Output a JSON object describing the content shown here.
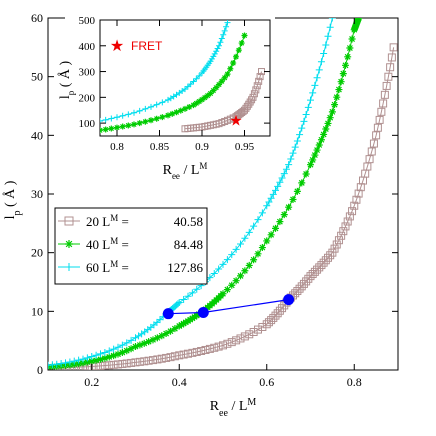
{
  "chart_data": [
    {
      "id": "main",
      "type": "line",
      "xlabel": "R_ee / L^M",
      "ylabel": "l_p (Å)",
      "xlim": [
        0.1,
        0.9
      ],
      "ylim": [
        0,
        60
      ],
      "xticks": [
        0.2,
        0.4,
        0.6,
        0.8
      ],
      "yticks": [
        0,
        10,
        20,
        30,
        40,
        50,
        60
      ],
      "legend_position": "left-middle",
      "series": [
        {
          "name": "20  L^M = 40.58",
          "legend_n": "20",
          "legend_value": "40.58",
          "marker": "square",
          "color": "#b09090",
          "points": [
            [
              0.1,
              0.3
            ],
            [
              0.2,
              0.6
            ],
            [
              0.3,
              1.3
            ],
            [
              0.4,
              2.5
            ],
            [
              0.5,
              4.2
            ],
            [
              0.6,
              7.8
            ],
            [
              0.65,
              12.0
            ],
            [
              0.7,
              16.0
            ],
            [
              0.75,
              20.0
            ],
            [
              0.8,
              28.0
            ],
            [
              0.85,
              40.0
            ],
            [
              0.89,
              55.0
            ]
          ]
        },
        {
          "name": "40  L^M = 84.48",
          "legend_n": "40",
          "legend_value": "84.48",
          "marker": "asterisk",
          "color": "#00cc00",
          "points": [
            [
              0.1,
              0.5
            ],
            [
              0.2,
              1.5
            ],
            [
              0.3,
              4.0
            ],
            [
              0.4,
              7.5
            ],
            [
              0.45,
              9.8
            ],
            [
              0.5,
              13.0
            ],
            [
              0.6,
              22.0
            ],
            [
              0.7,
              35.0
            ],
            [
              0.75,
              44.0
            ],
            [
              0.8,
              58.0
            ],
            [
              0.81,
              60.0
            ]
          ]
        },
        {
          "name": "60  L^M = 127.86",
          "legend_n": "60",
          "legend_value": "127.86",
          "marker": "plus",
          "color": "#00ddee",
          "points": [
            [
              0.1,
              0.8
            ],
            [
              0.2,
              2.3
            ],
            [
              0.3,
              5.5
            ],
            [
              0.37,
              9.6
            ],
            [
              0.4,
              11.5
            ],
            [
              0.5,
              18.0
            ],
            [
              0.6,
              28.0
            ],
            [
              0.65,
              35.0
            ],
            [
              0.7,
              46.0
            ],
            [
              0.75,
              60.0
            ]
          ]
        }
      ],
      "connector": {
        "color": "#0000ff",
        "points": [
          [
            0.375,
            9.6
          ],
          [
            0.455,
            9.8
          ],
          [
            0.65,
            12.0
          ]
        ]
      },
      "legend": {
        "l_label": "L",
        "l_superscript": "M",
        "equals": "="
      }
    },
    {
      "id": "inset",
      "type": "line",
      "xlabel": "R_ee / L^M",
      "ylabel": "l_p (Å)",
      "xlim": [
        0.78,
        0.98
      ],
      "ylim": [
        50,
        500
      ],
      "xticks": [
        0.8,
        0.85,
        0.9,
        0.95
      ],
      "xtick_labels": [
        "0.8",
        "0.85",
        "0.9",
        "0.95"
      ],
      "yticks": [
        100,
        200,
        300,
        400,
        500
      ],
      "annotation": {
        "label": "FRET",
        "marker": "star",
        "color": "#ee0000",
        "x": 0.94,
        "y": 110
      },
      "series": [
        {
          "name": "20",
          "marker": "square",
          "color": "#b09090",
          "points": [
            [
              0.88,
              78
            ],
            [
              0.9,
              85
            ],
            [
              0.92,
              98
            ],
            [
              0.94,
              125
            ],
            [
              0.95,
              150
            ],
            [
              0.96,
              200
            ],
            [
              0.97,
              300
            ]
          ]
        },
        {
          "name": "40",
          "marker": "asterisk",
          "color": "#00cc00",
          "points": [
            [
              0.78,
              72
            ],
            [
              0.82,
              95
            ],
            [
              0.86,
              130
            ],
            [
              0.89,
              170
            ],
            [
              0.91,
              215
            ],
            [
              0.93,
              290
            ],
            [
              0.95,
              440
            ]
          ]
        },
        {
          "name": "60",
          "marker": "plus",
          "color": "#00ddee",
          "points": [
            [
              0.78,
              108
            ],
            [
              0.82,
              140
            ],
            [
              0.86,
              190
            ],
            [
              0.88,
              232
            ],
            [
              0.9,
              295
            ],
            [
              0.91,
              340
            ],
            [
              0.92,
              400
            ],
            [
              0.93,
              490
            ]
          ]
        }
      ]
    }
  ],
  "labels": {
    "main_xlabel_main": "R",
    "main_xlabel_sub": "ee",
    "main_xlabel_rest": " / L",
    "main_xlabel_sup": "M",
    "main_ylabel_main": "l",
    "main_ylabel_sub": "p",
    "main_ylabel_rest": " ( Å )",
    "inset_xlabel_main": "R",
    "inset_xlabel_sub": "ee",
    "inset_xlabel_rest": " / L",
    "inset_xlabel_sup": "M",
    "inset_ylabel_main": "l",
    "inset_ylabel_sub": "p",
    "inset_ylabel_rest": " ( Å )",
    "fret_label": "FRET"
  }
}
